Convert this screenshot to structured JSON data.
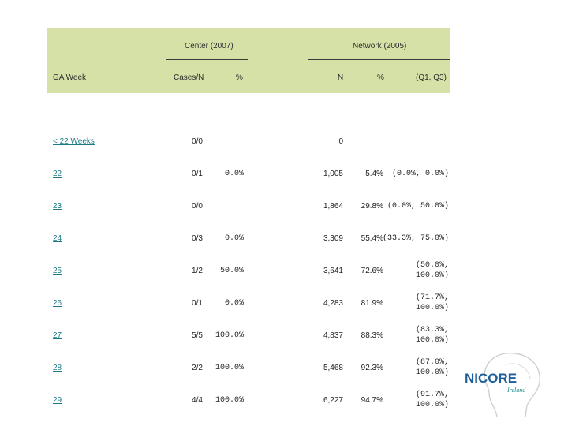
{
  "header": {
    "group_center": "Center (2007)",
    "group_network": "Network (2005)",
    "col_ga_week": "GA Week",
    "col_cases": "Cases/N",
    "col_pct": "%",
    "col_n": "N",
    "col_net_pct": "%",
    "col_q": "(Q1, Q3)"
  },
  "rows": [
    {
      "ga": "< 22 Weeks",
      "cases": "0/0",
      "pct": "",
      "n": "0",
      "net_pct": "",
      "q1": "",
      "q2": ""
    },
    {
      "ga": "22",
      "cases": "0/1",
      "pct": "0.0%",
      "n": "1,005",
      "net_pct": "5.4%",
      "q1": "(0.0%, 0.0%)",
      "q2": ""
    },
    {
      "ga": "23",
      "cases": "0/0",
      "pct": "",
      "n": "1,864",
      "net_pct": "29.8%",
      "q1": "(0.0%, 50.0%)",
      "q2": ""
    },
    {
      "ga": "24",
      "cases": "0/3",
      "pct": "0.0%",
      "n": "3,309",
      "net_pct": "55.4%",
      "q1": "(33.3%, 75.0%)",
      "q2": ""
    },
    {
      "ga": "25",
      "cases": "1/2",
      "pct": "50.0%",
      "n": "3,641",
      "net_pct": "72.6%",
      "q1": "(50.0%,",
      "q2": "100.0%)"
    },
    {
      "ga": "26",
      "cases": "0/1",
      "pct": "0.0%",
      "n": "4,283",
      "net_pct": "81.9%",
      "q1": "(71.7%,",
      "q2": "100.0%)"
    },
    {
      "ga": "27",
      "cases": "5/5",
      "pct": "100.0%",
      "n": "4,837",
      "net_pct": "88.3%",
      "q1": "(83.3%,",
      "q2": "100.0%)"
    },
    {
      "ga": "28",
      "cases": "2/2",
      "pct": "100.0%",
      "n": "5,468",
      "net_pct": "92.3%",
      "q1": "(87.0%,",
      "q2": "100.0%)"
    },
    {
      "ga": "29",
      "cases": "4/4",
      "pct": "100.0%",
      "n": "6,227",
      "net_pct": "94.7%",
      "q1": "(91.7%,",
      "q2": "100.0%)"
    }
  ],
  "logo": {
    "name": "NICORE",
    "subtitle": "Ireland",
    "colors": {
      "brand_blue": "#1d5f9a",
      "subtitle_teal": "#1e8c8c",
      "outline": "#d0d0d0"
    }
  }
}
